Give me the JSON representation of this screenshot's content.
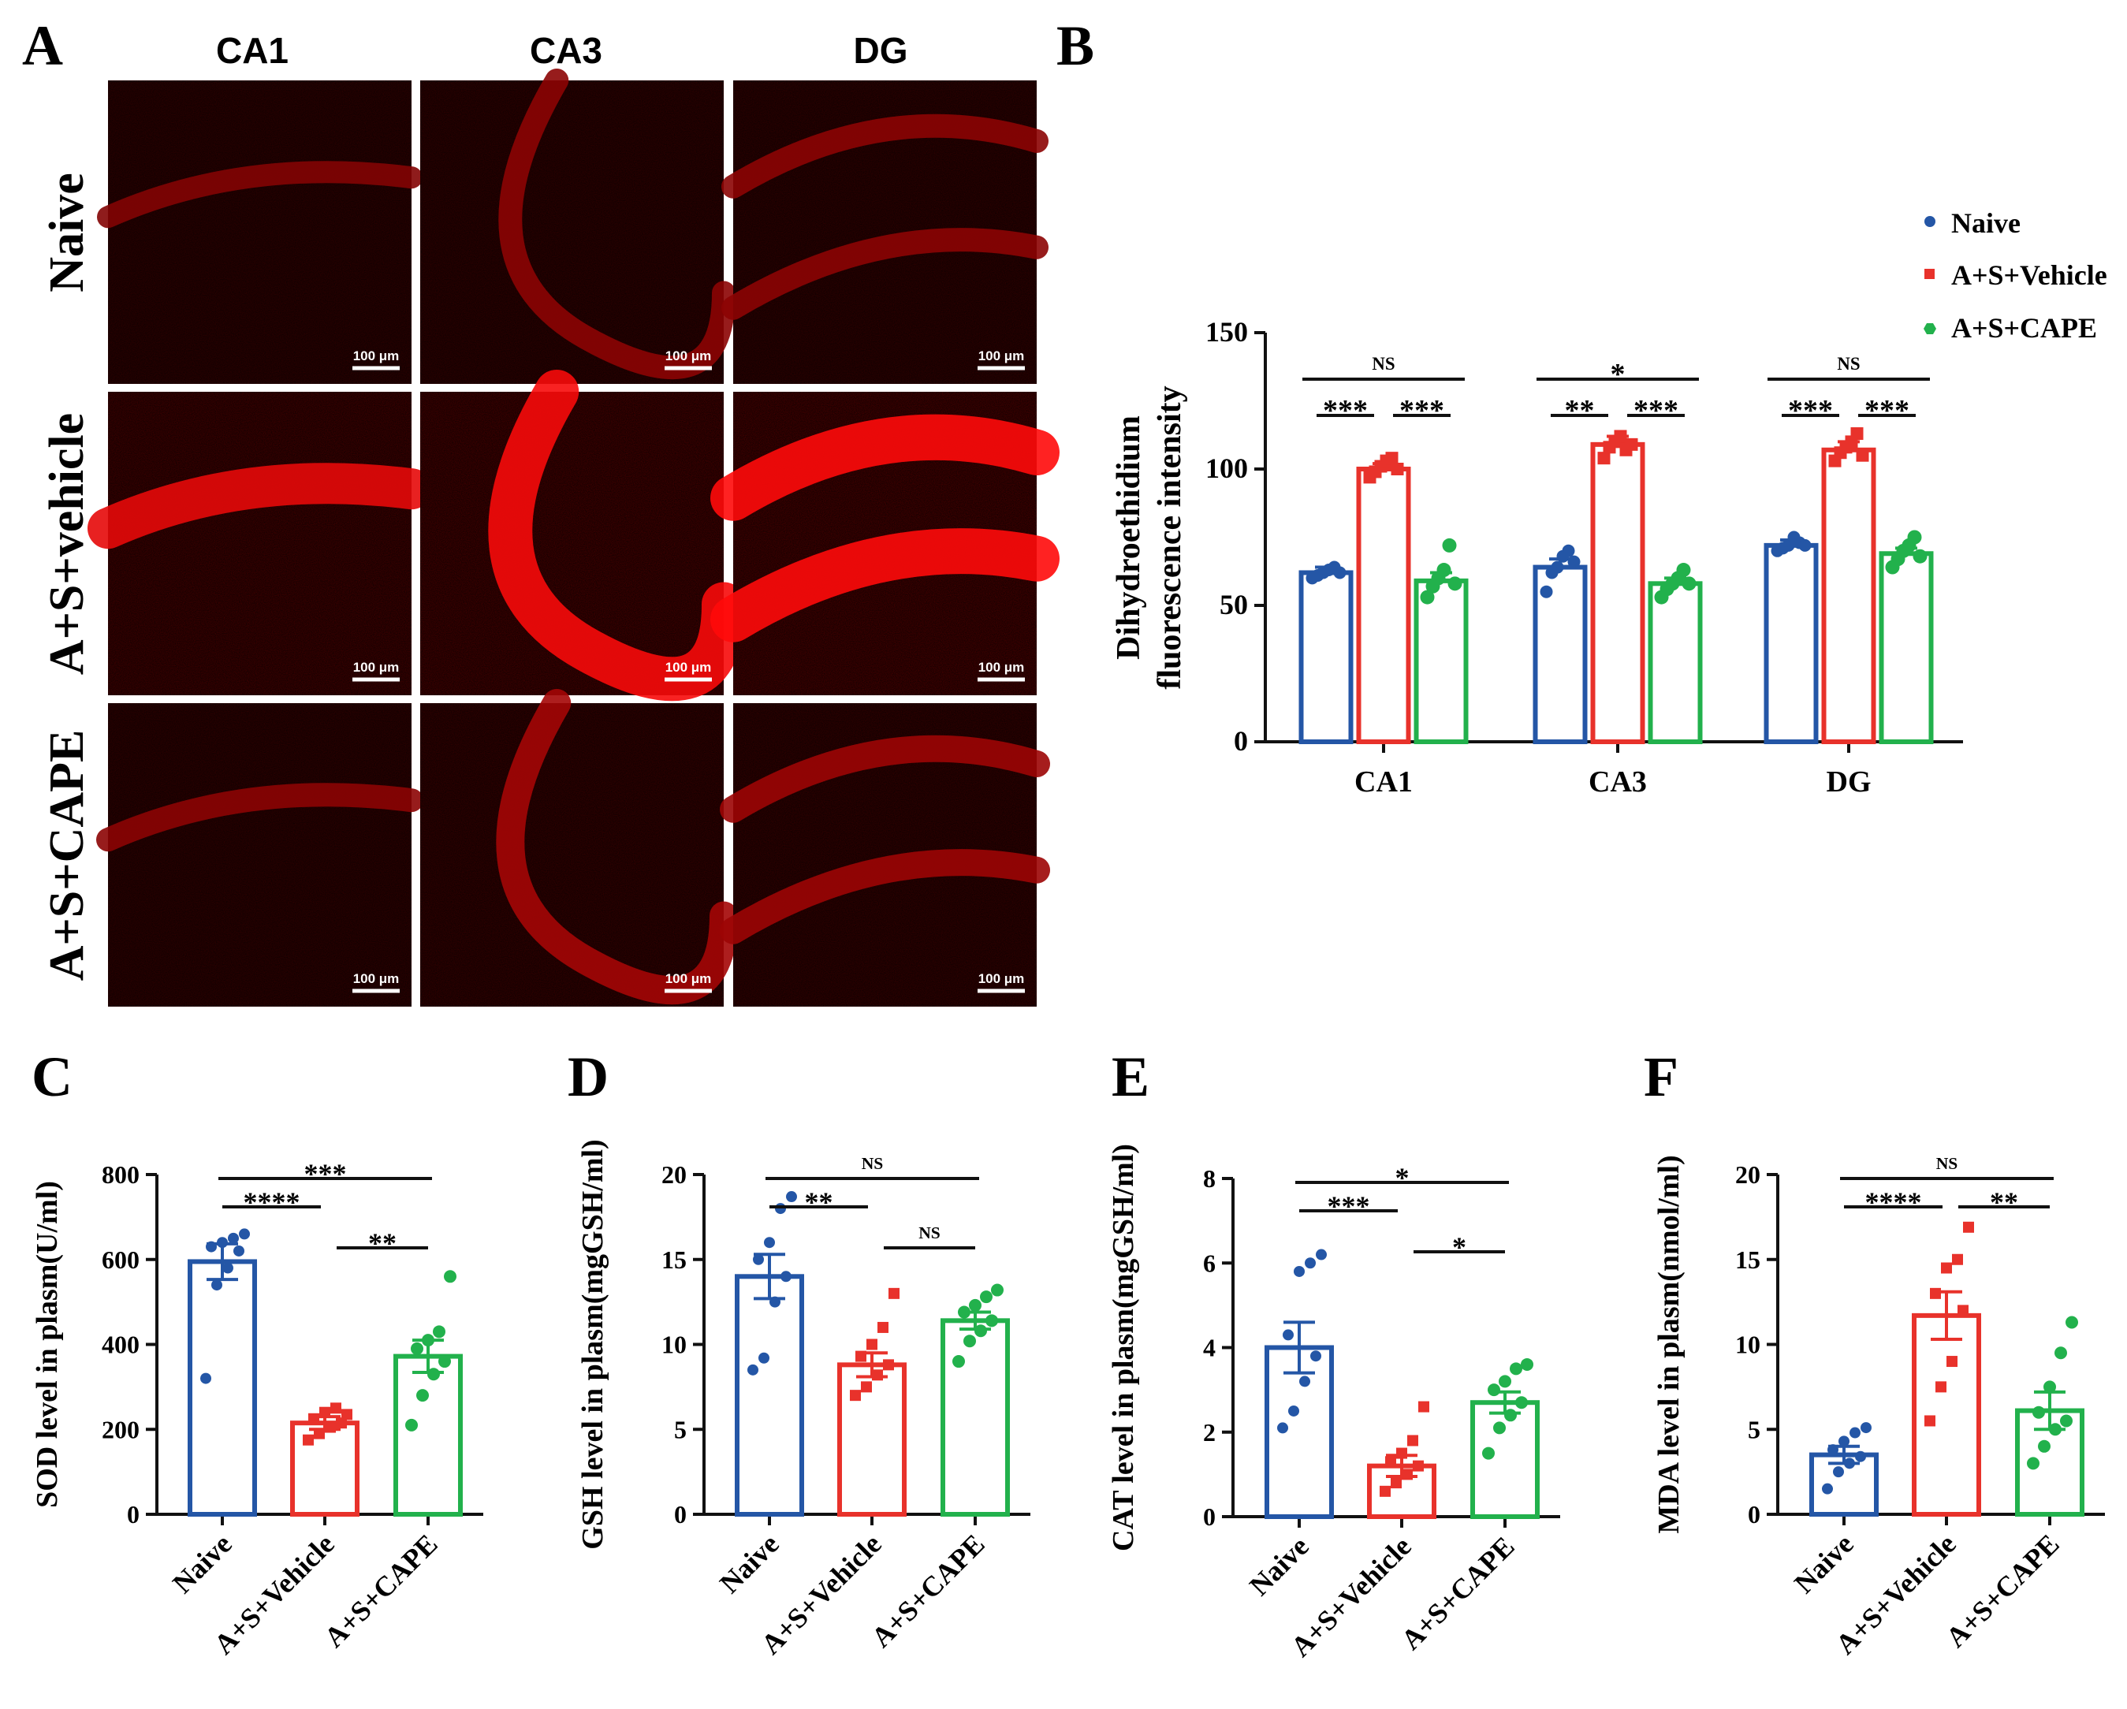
{
  "panel_labels": [
    "A",
    "B",
    "C",
    "D",
    "E",
    "F"
  ],
  "colors": {
    "naive": "#2456a6",
    "vehicle": "#e8322b",
    "cape": "#22b14c",
    "black": "#111111"
  },
  "panelA": {
    "columns": [
      "CA1",
      "CA3",
      "DG"
    ],
    "rows": [
      "Naive",
      "A+S+vehicle",
      "A+S+CAPE"
    ],
    "scale_bar": "100 μm",
    "intensity": [
      [
        0.25,
        0.3,
        0.3
      ],
      [
        0.85,
        0.95,
        1.0
      ],
      [
        0.3,
        0.45,
        0.4
      ]
    ]
  },
  "chart_data": [
    {
      "panel": "B",
      "type": "bar",
      "categories": [
        "CA1",
        "CA3",
        "DG"
      ],
      "ylabel": [
        "Dihydroethidium",
        "fluorescence intensity"
      ],
      "ylim": [
        0,
        150
      ],
      "yticks": [
        "0",
        "50",
        "100",
        "150"
      ],
      "legend": [
        "Naive",
        "A+S+Vehicle",
        "A+S+CAPE"
      ],
      "legend_position": "top-right",
      "series": [
        {
          "name": "Naive",
          "values": [
            62,
            64,
            72
          ],
          "sem": [
            2,
            3,
            2
          ],
          "points": [
            [
              60,
              61,
              62,
              63,
              64,
              62
            ],
            [
              55,
              62,
              64,
              68,
              70,
              66
            ],
            [
              70,
              71,
              72,
              75,
              73,
              72
            ]
          ]
        },
        {
          "name": "A+S+Vehicle",
          "values": [
            100,
            109,
            107
          ],
          "sem": [
            2,
            3,
            3
          ],
          "points": [
            [
              97,
              99,
              101,
              103,
              104,
              100
            ],
            [
              104,
              108,
              110,
              112,
              107,
              109
            ],
            [
              103,
              106,
              108,
              110,
              113,
              105
            ]
          ]
        },
        {
          "name": "A+S+CAPE",
          "values": [
            59,
            58,
            69
          ],
          "sem": [
            3,
            2,
            2
          ],
          "points": [
            [
              53,
              57,
              60,
              63,
              72,
              58
            ],
            [
              53,
              56,
              58,
              60,
              63,
              58
            ],
            [
              64,
              67,
              70,
              72,
              75,
              68
            ]
          ]
        }
      ],
      "annotations": [
        {
          "group": 0,
          "label": "NS",
          "from": 0,
          "to": 2,
          "level": 3
        },
        {
          "group": 0,
          "label": "***",
          "from": 0,
          "to": 1,
          "level": 1
        },
        {
          "group": 0,
          "label": "***",
          "from": 1,
          "to": 2,
          "level": 1
        },
        {
          "group": 1,
          "label": "*",
          "from": 0,
          "to": 2,
          "level": 3
        },
        {
          "group": 1,
          "label": "**",
          "from": 0,
          "to": 1,
          "level": 1
        },
        {
          "group": 1,
          "label": "***",
          "from": 1,
          "to": 2,
          "level": 1
        },
        {
          "group": 2,
          "label": "NS",
          "from": 0,
          "to": 2,
          "level": 3
        },
        {
          "group": 2,
          "label": "***",
          "from": 0,
          "to": 1,
          "level": 1
        },
        {
          "group": 2,
          "label": "***",
          "from": 1,
          "to": 2,
          "level": 1
        }
      ]
    },
    {
      "panel": "C",
      "type": "bar",
      "categories": [
        "Naive",
        "A+S+Vehicle",
        "A+S+CAPE"
      ],
      "ylabel": "SOD level in plasm(U/ml)",
      "ylim": [
        0,
        800
      ],
      "yticks": [
        "0",
        "200",
        "400",
        "600",
        "800"
      ],
      "values": [
        595,
        215,
        372
      ],
      "sem": [
        42,
        15,
        38
      ],
      "points": [
        [
          320,
          540,
          580,
          620,
          630,
          640,
          650,
          660
        ],
        [
          175,
          190,
          205,
          215,
          225,
          240,
          250,
          235
        ],
        [
          210,
          280,
          330,
          360,
          390,
          410,
          430,
          560
        ]
      ],
      "annotations": [
        {
          "label": "***",
          "from": 0,
          "to": 2,
          "level": 3
        },
        {
          "label": "****",
          "from": 0,
          "to": 1,
          "level": 2
        },
        {
          "label": "**",
          "from": 1,
          "to": 2,
          "level": 1
        }
      ]
    },
    {
      "panel": "D",
      "type": "bar",
      "categories": [
        "Naive",
        "A+S+Vehicle",
        "A+S+CAPE"
      ],
      "ylabel": "GSH level in plasm(mgGSH/ml)",
      "ylim": [
        0,
        20
      ],
      "yticks": [
        "0",
        "5",
        "10",
        "15",
        "20"
      ],
      "values": [
        14.0,
        8.8,
        11.4
      ],
      "sem": [
        1.3,
        0.7,
        0.5
      ],
      "points": [
        [
          8.5,
          9.2,
          12.5,
          14.0,
          15.0,
          16.0,
          18.0,
          18.7
        ],
        [
          7.0,
          7.5,
          8.2,
          8.8,
          9.3,
          10.0,
          11.0,
          13.0
        ],
        [
          9.0,
          10.2,
          10.8,
          11.4,
          11.9,
          12.3,
          12.8,
          13.2
        ]
      ],
      "annotations": [
        {
          "label": "NS",
          "from": 0,
          "to": 2,
          "level": 3
        },
        {
          "label": "**",
          "from": 0,
          "to": 1,
          "level": 2
        },
        {
          "label": "NS",
          "from": 1,
          "to": 2,
          "level": 1
        }
      ]
    },
    {
      "panel": "E",
      "type": "bar",
      "categories": [
        "Naive",
        "A+S+Vehicle",
        "A+S+CAPE"
      ],
      "ylabel": "CAT level in plasm(mgGSH/ml)",
      "ylim": [
        0,
        8
      ],
      "yticks": [
        "0",
        "2",
        "4",
        "6",
        "8"
      ],
      "values": [
        4.0,
        1.2,
        2.7
      ],
      "sem": [
        0.6,
        0.25,
        0.25
      ],
      "points": [
        [
          2.1,
          2.5,
          3.2,
          3.8,
          4.3,
          5.8,
          6.0,
          6.2
        ],
        [
          0.6,
          0.8,
          1.0,
          1.2,
          1.3,
          1.5,
          1.8,
          2.6
        ],
        [
          1.5,
          2.1,
          2.4,
          2.7,
          3.0,
          3.2,
          3.5,
          3.6
        ]
      ],
      "annotations": [
        {
          "label": "*",
          "from": 0,
          "to": 2,
          "level": 3
        },
        {
          "label": "***",
          "from": 0,
          "to": 1,
          "level": 2
        },
        {
          "label": "*",
          "from": 1,
          "to": 2,
          "level": 1
        }
      ]
    },
    {
      "panel": "F",
      "type": "bar",
      "categories": [
        "Naive",
        "A+S+Vehicle",
        "A+S+CAPE"
      ],
      "ylabel": "MDA level in plasm(nmol/ml)",
      "ylim": [
        0,
        20
      ],
      "yticks": [
        "0",
        "5",
        "10",
        "15",
        "20"
      ],
      "values": [
        3.5,
        11.7,
        6.1
      ],
      "sem": [
        0.5,
        1.4,
        1.1
      ],
      "points": [
        [
          1.5,
          2.5,
          3.0,
          3.4,
          3.8,
          4.3,
          4.8,
          5.1
        ],
        [
          5.5,
          7.5,
          9.0,
          12.0,
          13.0,
          14.5,
          15.0,
          16.9
        ],
        [
          3.0,
          4.0,
          5.0,
          5.5,
          6.0,
          7.5,
          9.5,
          11.3
        ]
      ],
      "annotations": [
        {
          "label": "NS",
          "from": 0,
          "to": 2,
          "level": 3
        },
        {
          "label": "****",
          "from": 0,
          "to": 1,
          "level": 2
        },
        {
          "label": "**",
          "from": 1,
          "to": 2,
          "level": 2
        }
      ]
    }
  ]
}
